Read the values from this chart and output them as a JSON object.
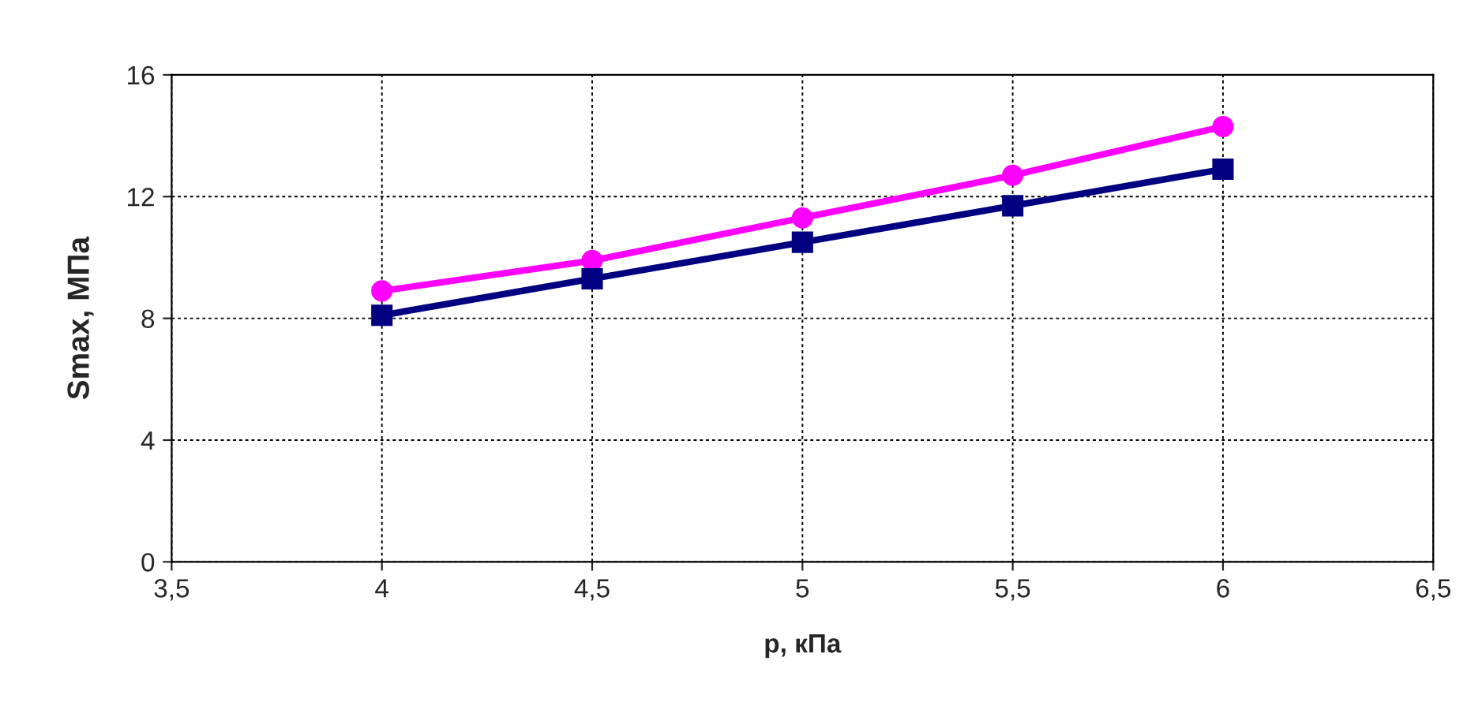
{
  "chart_data": {
    "type": "line",
    "xlabel": "p, кПа",
    "ylabel": "Smax, МПа",
    "x": [
      4,
      4.5,
      5,
      5.5,
      6
    ],
    "series": [
      {
        "color": "#ff00ff",
        "marker": "circle",
        "values": [
          8.9,
          9.9,
          11.3,
          12.7,
          14.3
        ]
      },
      {
        "color": "#000080",
        "marker": "square",
        "values": [
          8.1,
          9.3,
          10.5,
          11.7,
          12.9
        ]
      }
    ],
    "xlim": [
      3.5,
      6.5
    ],
    "xticks": [
      {
        "value": 3.5,
        "label": "3,5"
      },
      4,
      {
        "value": 4.5,
        "label": "4,5"
      },
      5,
      {
        "value": 5.5,
        "label": "5,5"
      },
      6,
      {
        "value": 6.5,
        "label": "6,5"
      }
    ],
    "ylim": [
      0,
      16
    ],
    "yticks": [
      0,
      4,
      8,
      12,
      16
    ],
    "grid": true,
    "line_style": "solid"
  }
}
